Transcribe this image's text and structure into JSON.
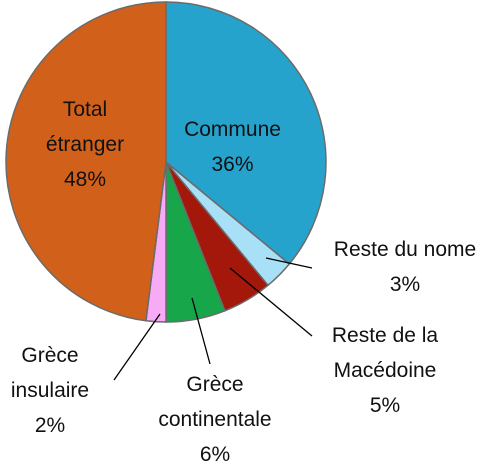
{
  "chart_data": {
    "type": "pie",
    "categories": [
      "Commune",
      "Reste du nome",
      "Reste de la Macédoine",
      "Grèce continentale",
      "Grèce insulaire",
      "Total étranger"
    ],
    "values": [
      36,
      3,
      5,
      6,
      2,
      48
    ],
    "value_labels": [
      "36%",
      "3%",
      "5%",
      "6%",
      "2%",
      "48%"
    ],
    "colors": [
      "#26a3cc",
      "#a8e0f8",
      "#a3180b",
      "#17a74a",
      "#f7aaf5",
      "#d1601b"
    ]
  }
}
